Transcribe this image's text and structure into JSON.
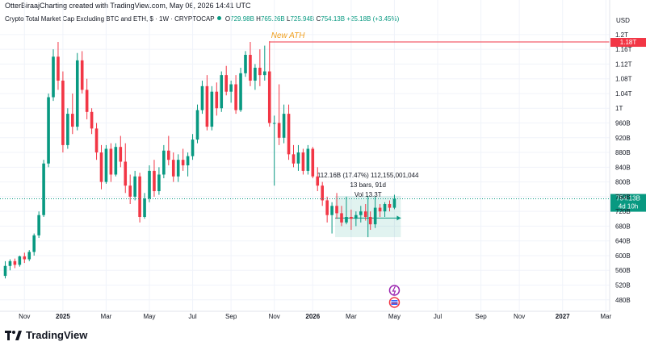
{
  "header": {
    "author_line": "OtterBiraajCharting created with TradingView.com, May 06, 2026 14:41 UTC"
  },
  "legend": {
    "symbol": "Crypto Total Market Cap Excluding BTC and ETH, $ · 1W · CRYPTOCAP",
    "open_label": "O",
    "open": "729.98B",
    "high_label": "H",
    "high": "765.26B",
    "low_label": "L",
    "low": "725.94B",
    "close_label": "C",
    "close": "754.13B",
    "change": "+25.18B (+3.45%)"
  },
  "currency": "USD",
  "brand": {
    "name": "TradingView",
    "logo_icon": "tradingview-logo-icon"
  },
  "colors": {
    "up": "#089981",
    "down": "#f23645",
    "ath_line": "#f23645",
    "annotation_text": "#f0a020",
    "range_fill": "#089981",
    "grid": "#f0f3fa",
    "axis_text": "#131722"
  },
  "chart_data": {
    "type": "candlestick",
    "yaxis": {
      "ticks": [
        "1.2T",
        "1.16T",
        "1.12T",
        "1.08T",
        "1.04T",
        "1T",
        "960B",
        "920B",
        "880B",
        "840B",
        "800B",
        "760B",
        "720B",
        "680B",
        "640B",
        "600B",
        "560B",
        "520B",
        "480B"
      ],
      "tick_values": [
        1200,
        1160,
        1120,
        1080,
        1040,
        1000,
        960,
        920,
        880,
        840,
        800,
        760,
        720,
        680,
        640,
        600,
        560,
        520,
        480
      ],
      "unit": "billions USD",
      "ylim": [
        462,
        1226
      ]
    },
    "xaxis": {
      "ticks": [
        "Nov",
        "2025",
        "Mar",
        "May",
        "Jul",
        "Sep",
        "Nov",
        "2026",
        "Mar",
        "May",
        "Jul",
        "Sep",
        "Nov",
        "2027",
        "Mar"
      ],
      "bold": [
        "2025",
        "2026",
        "2027"
      ],
      "tick_week_index": [
        4,
        12,
        21,
        30,
        39,
        47,
        56,
        64,
        72,
        81,
        90,
        99,
        107,
        116,
        125
      ],
      "last_week_index": 81
    },
    "ath": {
      "label": "New ATH",
      "value_label": "1.18T",
      "value": 1180,
      "week_index": 55
    },
    "last_price": {
      "label": "754.13B",
      "countdown": "4d 10h",
      "value": 754.13
    },
    "measure": {
      "line1": "112.16B (17.47%) 112,155,001,044",
      "line2": "13 bars, 91d",
      "line3": "Vol 13.3T",
      "start_index": 69,
      "end_index": 82,
      "low": 650,
      "high": 762,
      "arrow_level": 702
    },
    "candles": [
      [
        545,
        585,
        538,
        572
      ],
      [
        572,
        590,
        560,
        585
      ],
      [
        585,
        592,
        566,
        575
      ],
      [
        575,
        600,
        570,
        598
      ],
      [
        598,
        608,
        580,
        590
      ],
      [
        590,
        615,
        585,
        610
      ],
      [
        610,
        660,
        600,
        655
      ],
      [
        655,
        720,
        648,
        710
      ],
      [
        710,
        860,
        705,
        850
      ],
      [
        850,
        1040,
        840,
        1030
      ],
      [
        1030,
        1160,
        1020,
        1140
      ],
      [
        1140,
        1180,
        1050,
        1075
      ],
      [
        1075,
        1100,
        880,
        900
      ],
      [
        900,
        1000,
        890,
        985
      ],
      [
        985,
        1040,
        930,
        950
      ],
      [
        950,
        1150,
        940,
        1130
      ],
      [
        1130,
        1155,
        1040,
        1050
      ],
      [
        1050,
        1080,
        970,
        990
      ],
      [
        990,
        1000,
        930,
        945
      ],
      [
        945,
        960,
        860,
        880
      ],
      [
        880,
        900,
        780,
        800
      ],
      [
        800,
        900,
        795,
        890
      ],
      [
        890,
        905,
        800,
        820
      ],
      [
        820,
        905,
        815,
        895
      ],
      [
        895,
        925,
        840,
        855
      ],
      [
        855,
        905,
        770,
        790
      ],
      [
        790,
        820,
        740,
        760
      ],
      [
        760,
        830,
        750,
        815
      ],
      [
        815,
        825,
        690,
        705
      ],
      [
        705,
        770,
        700,
        755
      ],
      [
        755,
        845,
        745,
        830
      ],
      [
        830,
        860,
        760,
        775
      ],
      [
        775,
        840,
        765,
        820
      ],
      [
        820,
        900,
        810,
        885
      ],
      [
        885,
        925,
        845,
        860
      ],
      [
        860,
        880,
        800,
        815
      ],
      [
        815,
        875,
        800,
        860
      ],
      [
        860,
        890,
        830,
        845
      ],
      [
        845,
        880,
        815,
        870
      ],
      [
        870,
        930,
        860,
        915
      ],
      [
        915,
        1010,
        905,
        995
      ],
      [
        995,
        1075,
        985,
        1060
      ],
      [
        1060,
        1090,
        940,
        950
      ],
      [
        950,
        1060,
        940,
        1045
      ],
      [
        1045,
        1070,
        980,
        1000
      ],
      [
        1000,
        1100,
        990,
        1090
      ],
      [
        1090,
        1115,
        1035,
        1045
      ],
      [
        1045,
        1075,
        1015,
        1065
      ],
      [
        1065,
        1090,
        985,
        995
      ],
      [
        995,
        1110,
        990,
        1095
      ],
      [
        1095,
        1155,
        1085,
        1145
      ],
      [
        1145,
        1180,
        1060,
        1075
      ],
      [
        1075,
        1120,
        1050,
        1110
      ],
      [
        1110,
        1160,
        1060,
        1090
      ],
      [
        1090,
        1170,
        1075,
        1100
      ],
      [
        1100,
        1182,
        950,
        960
      ],
      [
        960,
        980,
        790,
        960
      ],
      [
        960,
        1065,
        900,
        920
      ],
      [
        920,
        1010,
        905,
        985
      ],
      [
        985,
        1010,
        860,
        875
      ],
      [
        875,
        900,
        840,
        850
      ],
      [
        850,
        900,
        830,
        880
      ],
      [
        880,
        890,
        820,
        830
      ],
      [
        830,
        900,
        820,
        890
      ],
      [
        890,
        895,
        810,
        815
      ],
      [
        815,
        840,
        775,
        790
      ],
      [
        790,
        800,
        735,
        750
      ],
      [
        750,
        760,
        690,
        710
      ],
      [
        710,
        745,
        660,
        735
      ],
      [
        735,
        770,
        700,
        715
      ],
      [
        715,
        735,
        680,
        690
      ],
      [
        690,
        760,
        685,
        705
      ],
      [
        705,
        725,
        670,
        700
      ],
      [
        700,
        720,
        680,
        710
      ],
      [
        710,
        735,
        690,
        720
      ],
      [
        720,
        740,
        695,
        705
      ],
      [
        705,
        720,
        670,
        685
      ],
      [
        685,
        760,
        675,
        730
      ],
      [
        730,
        740,
        705,
        720
      ],
      [
        720,
        745,
        705,
        740
      ],
      [
        740,
        750,
        720,
        729.98
      ],
      [
        729.98,
        765.26,
        725.94,
        754.13
      ]
    ]
  }
}
